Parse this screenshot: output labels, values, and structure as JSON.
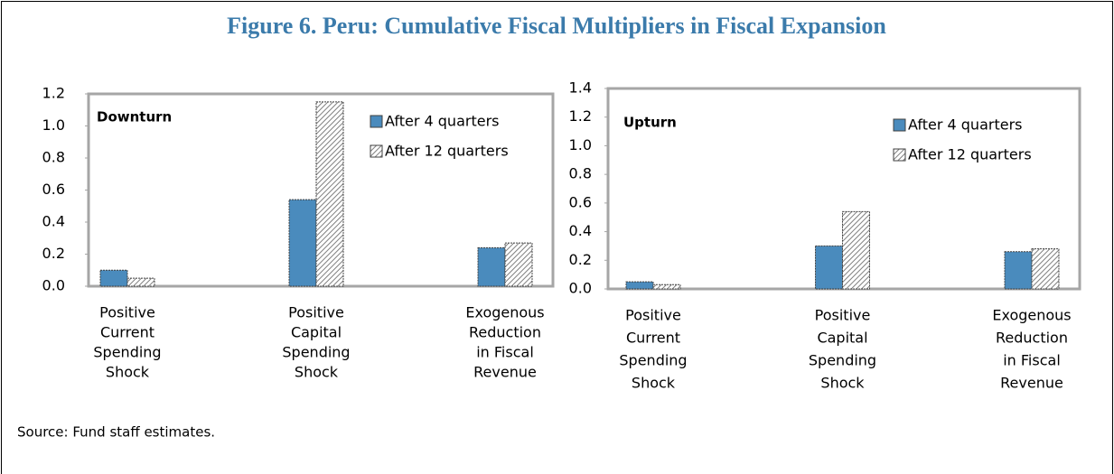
{
  "title": "Figure 6. Peru: Cumulative Fiscal Multipliers in Fiscal Expansion",
  "source": "Source: Fund staff estimates.",
  "chart_data": [
    {
      "type": "bar",
      "label": "Downturn",
      "categories": [
        [
          "Positive",
          "Current",
          "Spending",
          "Shock"
        ],
        [
          "Positive",
          "Capital",
          "Spending",
          "Shock"
        ],
        [
          "Exogenous",
          "Reduction",
          "in Fiscal",
          "Revenue"
        ]
      ],
      "series": [
        {
          "name": "After 4 quarters",
          "color": "#4a8bbd",
          "values": [
            0.1,
            0.54,
            0.24
          ]
        },
        {
          "name": "After 12 quarters",
          "color": "#7f7f7f",
          "hatch": true,
          "values": [
            0.05,
            1.15,
            0.27
          ]
        }
      ],
      "ylim": [
        0,
        1.2
      ],
      "yticks": [
        {
          "value": 0,
          "label": "0.0"
        },
        0.2,
        0.4,
        0.6,
        0.8,
        {
          "value": 1,
          "label": "1.0"
        },
        1.2
      ],
      "grid": false,
      "legend": "top-right"
    },
    {
      "type": "bar",
      "label": "Upturn",
      "categories": [
        [
          "Positive",
          "Current",
          "Spending",
          "Shock"
        ],
        [
          "Positive",
          "Capital",
          "Spending",
          "Shock"
        ],
        [
          "Exogenous",
          "Reduction",
          "in Fiscal",
          "Revenue"
        ]
      ],
      "series": [
        {
          "name": "After 4 quarters",
          "color": "#4a8bbd",
          "values": [
            0.05,
            0.3,
            0.26
          ]
        },
        {
          "name": "After 12 quarters",
          "color": "#7f7f7f",
          "hatch": true,
          "values": [
            0.03,
            0.54,
            0.28
          ]
        }
      ],
      "ylim": [
        0,
        1.4
      ],
      "yticks": [
        {
          "value": 0,
          "label": "0.0"
        },
        0.2,
        0.4,
        0.6,
        0.8,
        {
          "value": 1,
          "label": "1.0"
        },
        1.2,
        1.4
      ],
      "grid": false,
      "legend": "top-right"
    }
  ]
}
